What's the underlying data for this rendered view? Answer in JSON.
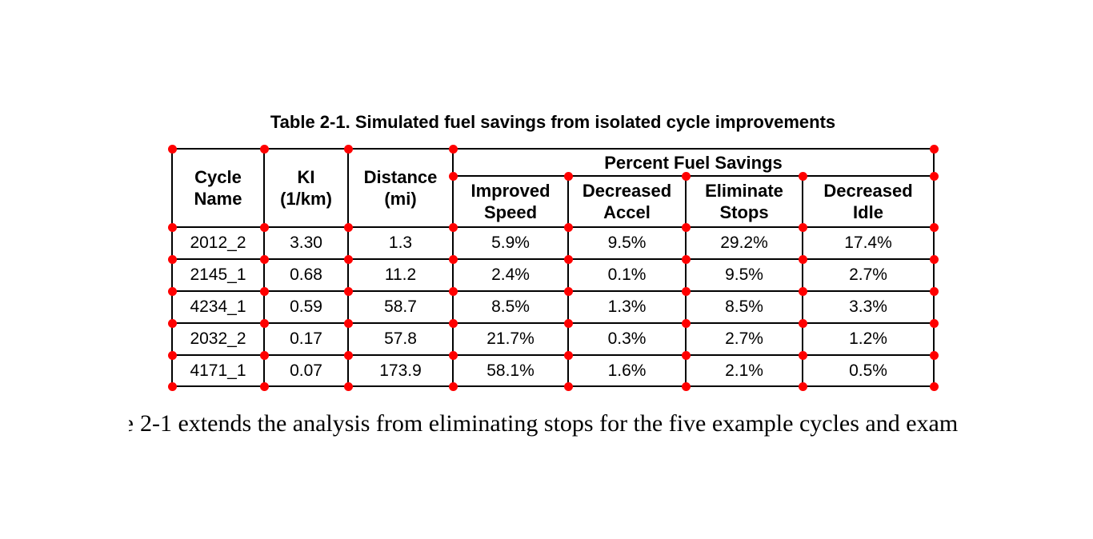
{
  "page_title": "Table 2-1. Simulated fuel savings from isolated cycle improvements",
  "table": {
    "column_headers": [
      {
        "key": "cycle-name",
        "lines": [
          "Cycle",
          "Name"
        ]
      },
      {
        "key": "ki",
        "lines": [
          "KI",
          "(1/km)"
        ]
      },
      {
        "key": "distance",
        "lines": [
          "Distance",
          "(mi)"
        ]
      }
    ],
    "group_header": {
      "key": "percent-fuel-savings",
      "label": "Percent Fuel Savings"
    },
    "sub_headers": [
      {
        "key": "improved-speed",
        "lines": [
          "Improved",
          "Speed"
        ]
      },
      {
        "key": "decreased-accel",
        "lines": [
          "Decreased",
          "Accel"
        ]
      },
      {
        "key": "eliminate-stops",
        "lines": [
          "Eliminate",
          "Stops"
        ]
      },
      {
        "key": "decreased-idle",
        "lines": [
          "Decreased",
          "Idle"
        ]
      }
    ],
    "rows": [
      {
        "cycle_name": "2012_2",
        "ki": "3.30",
        "distance_mi": "1.3",
        "improved_speed": "5.9%",
        "decreased_accel": "9.5%",
        "eliminate_stops": "29.2%",
        "decreased_idle": "17.4%"
      },
      {
        "cycle_name": "2145_1",
        "ki": "0.68",
        "distance_mi": "11.2",
        "improved_speed": "2.4%",
        "decreased_accel": "0.1%",
        "eliminate_stops": "9.5%",
        "decreased_idle": "2.7%"
      },
      {
        "cycle_name": "4234_1",
        "ki": "0.59",
        "distance_mi": "58.7",
        "improved_speed": "8.5%",
        "decreased_accel": "1.3%",
        "eliminate_stops": "8.5%",
        "decreased_idle": "3.3%"
      },
      {
        "cycle_name": "2032_2",
        "ki": "0.17",
        "distance_mi": "57.8",
        "improved_speed": "21.7%",
        "decreased_accel": "0.3%",
        "eliminate_stops": "2.7%",
        "decreased_idle": "1.2%"
      },
      {
        "cycle_name": "4171_1",
        "ki": "0.07",
        "distance_mi": "173.9",
        "improved_speed": "58.1%",
        "decreased_accel": "1.6%",
        "eliminate_stops": "2.1%",
        "decreased_idle": "0.5%"
      }
    ]
  },
  "body_text": {
    "clipped_fragment": "e",
    "text": "2-1 extends the analysis from eliminating stops for the five example cycles and exam"
  },
  "annotation": {
    "marker_color": "#ff0000"
  },
  "colors": {
    "background": "#ffffff",
    "text": "#000000",
    "grid_line": "#000000"
  }
}
